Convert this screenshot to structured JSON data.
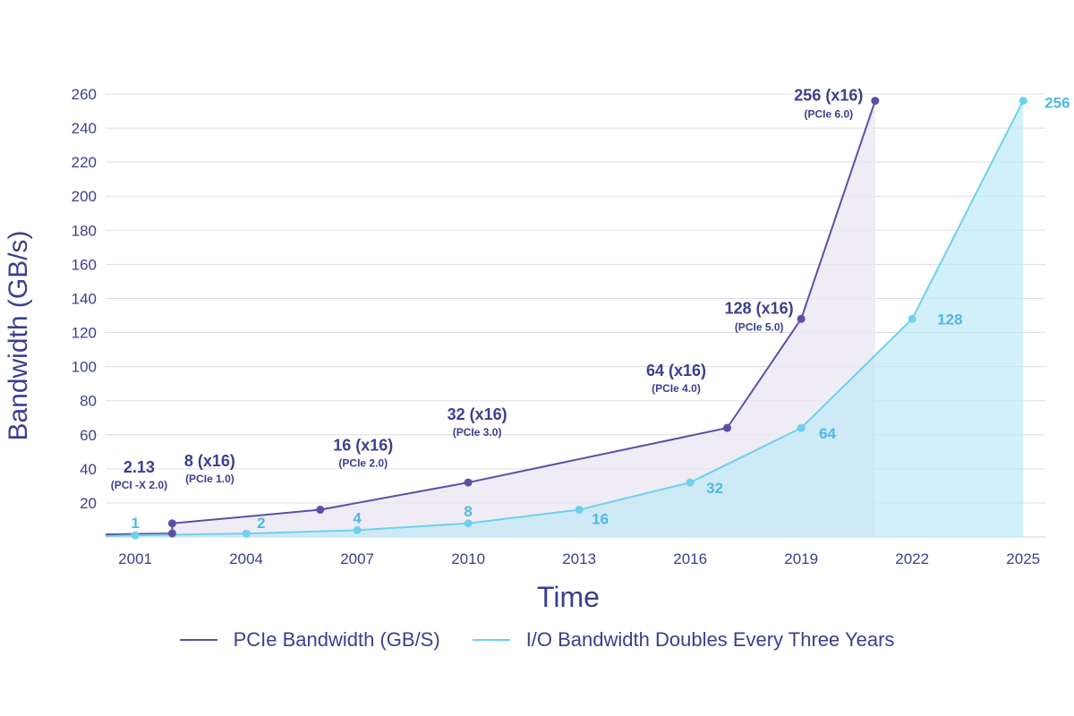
{
  "chart_data": {
    "type": "area",
    "xlabel": "Time",
    "ylabel": "Bandwidth (GB/s)",
    "x_ticks": [
      "2001",
      "2004",
      "2007",
      "2010",
      "2013",
      "2016",
      "2019",
      "2022",
      "2025"
    ],
    "y_ticks": [
      20,
      40,
      60,
      80,
      100,
      120,
      140,
      160,
      180,
      200,
      220,
      240,
      260
    ],
    "xlim": [
      2000.2,
      2025.6
    ],
    "ylim": [
      0,
      260
    ],
    "grid": true,
    "legend_position": "bottom",
    "series": [
      {
        "name": "PCIe Bandwidth (GB/S)",
        "color": "#5b4fa8",
        "points": [
          {
            "x": 2002,
            "y": 2.13,
            "label": "2.13",
            "sub": "(PCI -X 2.0)"
          },
          {
            "x": 2002,
            "y": 8,
            "label": "8 (x16)",
            "sub": "(PCIe 1.0)"
          },
          {
            "x": 2006,
            "y": 16,
            "label": "16 (x16)",
            "sub": "(PCIe 2.0)"
          },
          {
            "x": 2010,
            "y": 32,
            "label": "32 (x16)",
            "sub": "(PCIe 3.0)"
          },
          {
            "x": 2017,
            "y": 64,
            "label": "64 (x16)",
            "sub": "(PCIe 4.0)"
          },
          {
            "x": 2019,
            "y": 128,
            "label": "128 (x16)",
            "sub": "(PCIe 5.0)"
          },
          {
            "x": 2021,
            "y": 256,
            "label": "256 (x16)",
            "sub": "(PCIe 6.0)"
          }
        ]
      },
      {
        "name": "I/O Bandwidth Doubles Every Three Years",
        "color": "#6fd0ec",
        "points": [
          {
            "x": 2001,
            "y": 1,
            "label": "1"
          },
          {
            "x": 2004,
            "y": 2,
            "label": "2"
          },
          {
            "x": 2007,
            "y": 4,
            "label": "4"
          },
          {
            "x": 2010,
            "y": 8,
            "label": "8"
          },
          {
            "x": 2013,
            "y": 16,
            "label": "16"
          },
          {
            "x": 2016,
            "y": 32,
            "label": "32"
          },
          {
            "x": 2019,
            "y": 64,
            "label": "64"
          },
          {
            "x": 2022,
            "y": 128,
            "label": "128"
          },
          {
            "x": 2025,
            "y": 256,
            "label": "256"
          }
        ]
      }
    ]
  }
}
